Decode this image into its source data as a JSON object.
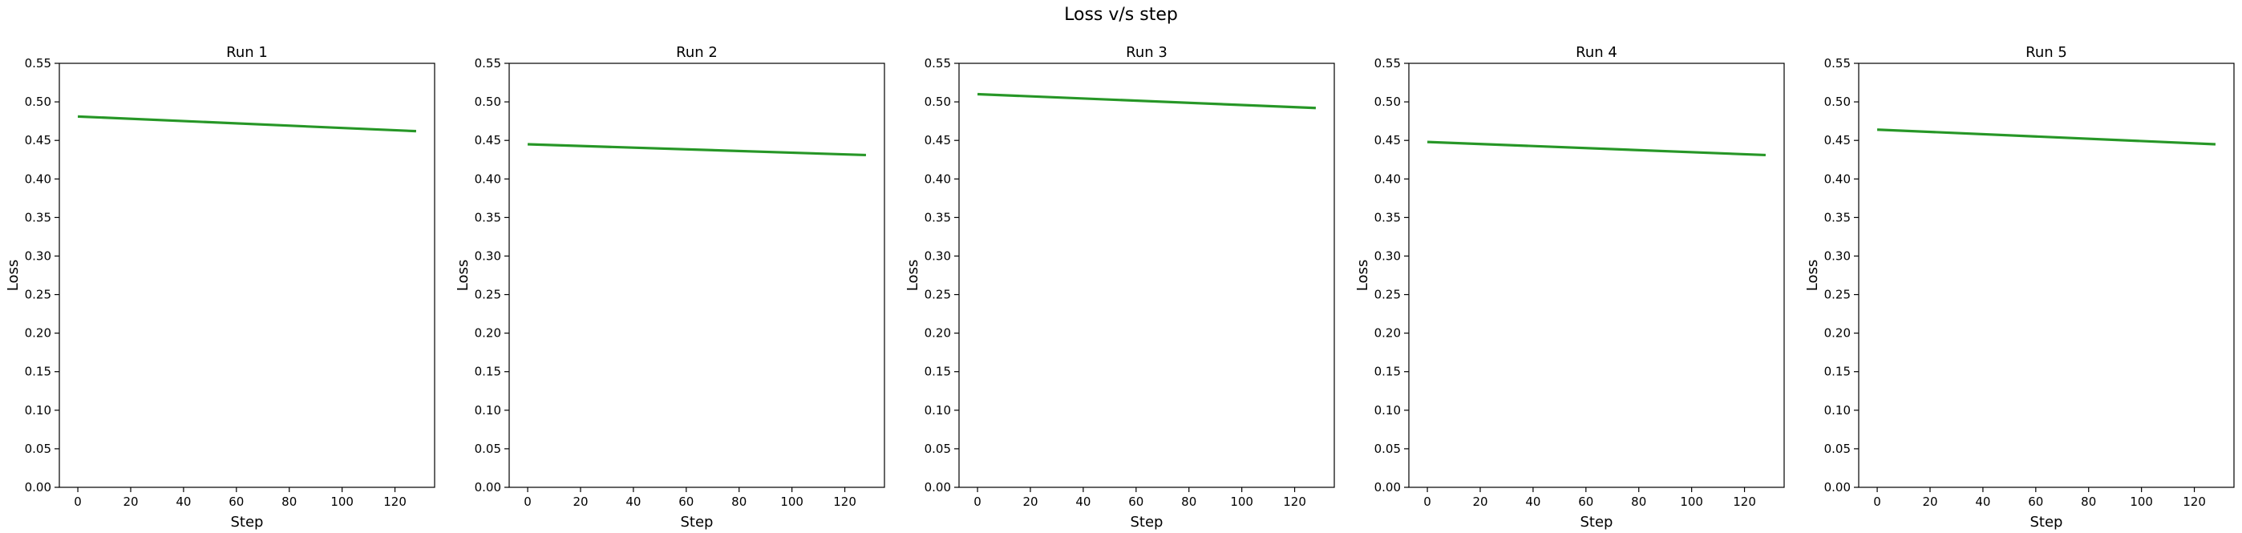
{
  "figure": {
    "suptitle": "Loss v/s step"
  },
  "colors": {
    "line": "#2ca02c",
    "line_dark": "#1f7a1f",
    "axis": "#000000",
    "text": "#000000",
    "background": "#ffffff"
  },
  "chart_data": [
    {
      "type": "line",
      "title": "Run 1",
      "xlabel": "Step",
      "ylabel": "Loss",
      "xlim": [
        -7,
        135
      ],
      "ylim": [
        0,
        0.55
      ],
      "xticks": [
        0,
        20,
        40,
        60,
        80,
        100,
        120
      ],
      "yticks": [
        0.0,
        0.05,
        0.1,
        0.15,
        0.2,
        0.25,
        0.3,
        0.35,
        0.4,
        0.45,
        0.5,
        0.55
      ],
      "grid": false,
      "series": [
        {
          "x_start": 0,
          "x_end": 128,
          "y_start": 0.481,
          "y_end": 0.462
        }
      ]
    },
    {
      "type": "line",
      "title": "Run 2",
      "xlabel": "Step",
      "ylabel": "Loss",
      "xlim": [
        -7,
        135
      ],
      "ylim": [
        0,
        0.55
      ],
      "xticks": [
        0,
        20,
        40,
        60,
        80,
        100,
        120
      ],
      "yticks": [
        0.0,
        0.05,
        0.1,
        0.15,
        0.2,
        0.25,
        0.3,
        0.35,
        0.4,
        0.45,
        0.5,
        0.55
      ],
      "grid": false,
      "series": [
        {
          "x_start": 0,
          "x_end": 128,
          "y_start": 0.445,
          "y_end": 0.431
        }
      ]
    },
    {
      "type": "line",
      "title": "Run 3",
      "xlabel": "Step",
      "ylabel": "Loss",
      "xlim": [
        -7,
        135
      ],
      "ylim": [
        0,
        0.55
      ],
      "xticks": [
        0,
        20,
        40,
        60,
        80,
        100,
        120
      ],
      "yticks": [
        0.0,
        0.05,
        0.1,
        0.15,
        0.2,
        0.25,
        0.3,
        0.35,
        0.4,
        0.45,
        0.5,
        0.55
      ],
      "grid": false,
      "series": [
        {
          "x_start": 0,
          "x_end": 128,
          "y_start": 0.51,
          "y_end": 0.492
        }
      ]
    },
    {
      "type": "line",
      "title": "Run 4",
      "xlabel": "Step",
      "ylabel": "Loss",
      "xlim": [
        -7,
        135
      ],
      "ylim": [
        0,
        0.55
      ],
      "xticks": [
        0,
        20,
        40,
        60,
        80,
        100,
        120
      ],
      "yticks": [
        0.0,
        0.05,
        0.1,
        0.15,
        0.2,
        0.25,
        0.3,
        0.35,
        0.4,
        0.45,
        0.5,
        0.55
      ],
      "grid": false,
      "series": [
        {
          "x_start": 0,
          "x_end": 128,
          "y_start": 0.448,
          "y_end": 0.431
        }
      ]
    },
    {
      "type": "line",
      "title": "Run 5",
      "xlabel": "Step",
      "ylabel": "Loss",
      "xlim": [
        -7,
        135
      ],
      "ylim": [
        0,
        0.55
      ],
      "xticks": [
        0,
        20,
        40,
        60,
        80,
        100,
        120
      ],
      "yticks": [
        0.0,
        0.05,
        0.1,
        0.15,
        0.2,
        0.25,
        0.3,
        0.35,
        0.4,
        0.45,
        0.5,
        0.55
      ],
      "grid": false,
      "series": [
        {
          "x_start": 0,
          "x_end": 128,
          "y_start": 0.464,
          "y_end": 0.445
        }
      ]
    }
  ]
}
